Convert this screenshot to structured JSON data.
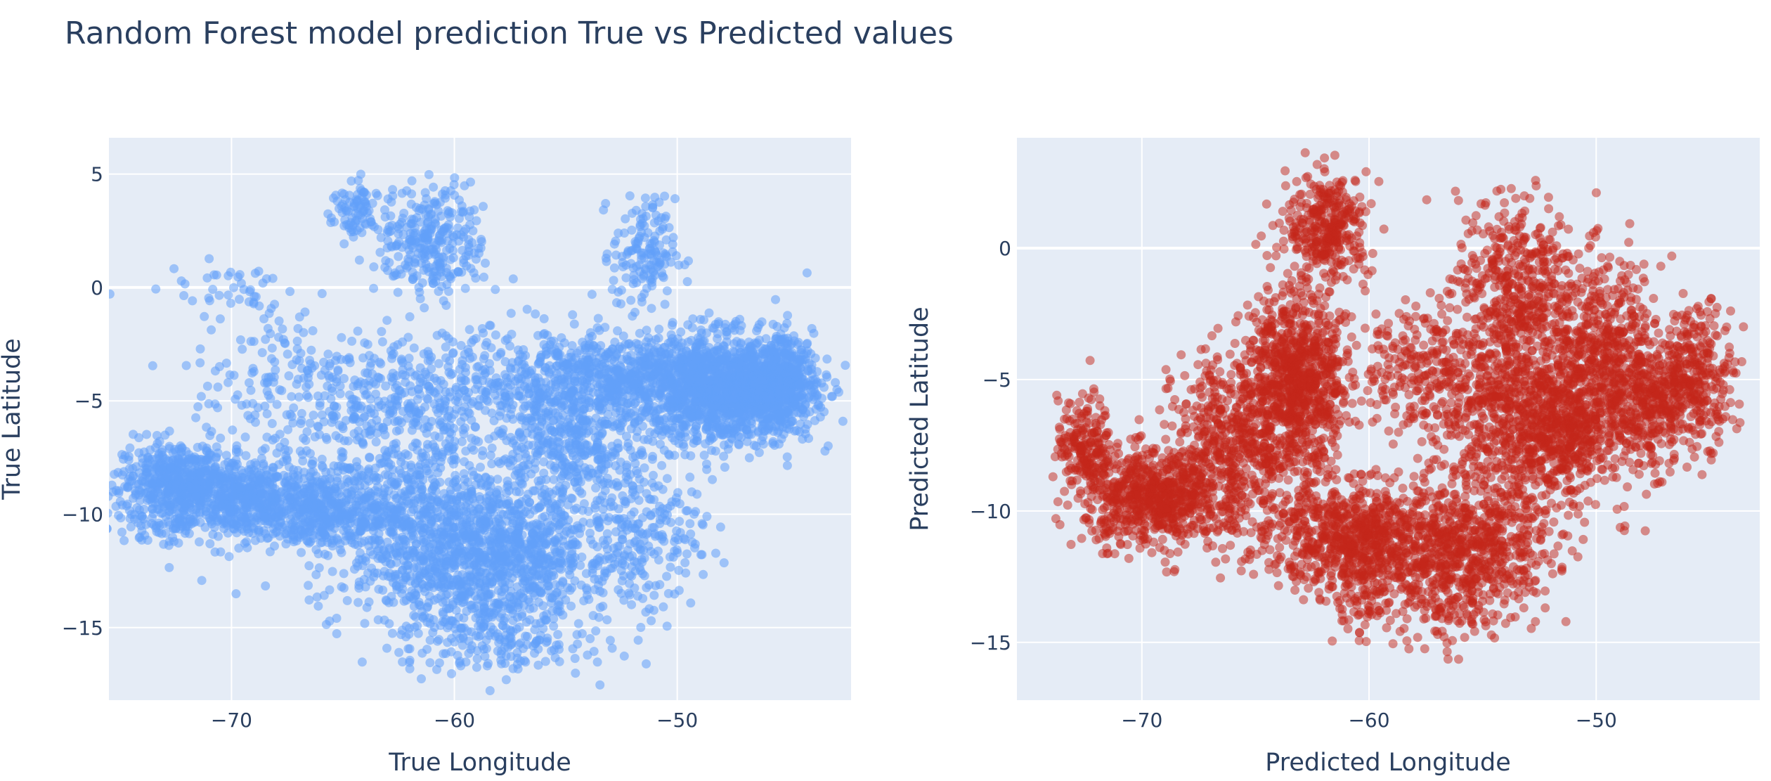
{
  "title": "Random Forest model prediction True vs Predicted values",
  "colors": {
    "plot_bg": "#e5ecf6",
    "grid": "#ffffff",
    "text": "#2a3f5f",
    "true_points": "#62a0fa",
    "pred_points": "#c3261a"
  },
  "chart_data": [
    {
      "type": "scatter",
      "title": "",
      "xlabel": "True Longitude",
      "ylabel": "True Latitude",
      "xlim": [
        -75.5,
        -42.2
      ],
      "ylim": [
        -18.2,
        6.6
      ],
      "xticks": [
        -70,
        -60,
        -50
      ],
      "xtick_labels": [
        "−70",
        "−60",
        "−50"
      ],
      "yticks": [
        5,
        0,
        -5,
        -10,
        -15
      ],
      "ytick_labels": [
        "5",
        "0",
        "−5",
        "−10",
        "−15"
      ],
      "grid": true,
      "legend": "none",
      "color": "#62a0fa",
      "opacity": 0.55,
      "point_groups": [
        {
          "cx": -69.5,
          "cy": -9.3,
          "sx": 3.2,
          "sy": 0.9,
          "n": 900
        },
        {
          "cx": -72.5,
          "cy": -8.5,
          "sx": 1.2,
          "sy": 0.9,
          "n": 350
        },
        {
          "cx": -66.0,
          "cy": -10.2,
          "sx": 2.5,
          "sy": 0.7,
          "n": 300
        },
        {
          "cx": -61.5,
          "cy": -10.5,
          "sx": 2.5,
          "sy": 2.0,
          "n": 700
        },
        {
          "cx": -59.0,
          "cy": -13.0,
          "sx": 2.2,
          "sy": 1.8,
          "n": 500
        },
        {
          "cx": -57.0,
          "cy": -11.5,
          "sx": 2.0,
          "sy": 1.5,
          "n": 450
        },
        {
          "cx": -55.0,
          "cy": -7.0,
          "sx": 1.3,
          "sy": 1.5,
          "n": 300
        },
        {
          "cx": -60.5,
          "cy": -5.0,
          "sx": 3.0,
          "sy": 1.5,
          "n": 450
        },
        {
          "cx": -53.0,
          "cy": -4.0,
          "sx": 3.0,
          "sy": 1.0,
          "n": 700
        },
        {
          "cx": -48.0,
          "cy": -4.5,
          "sx": 2.0,
          "sy": 1.2,
          "n": 1300
        },
        {
          "cx": -45.5,
          "cy": -4.2,
          "sx": 0.8,
          "sy": 1.0,
          "n": 400
        },
        {
          "cx": -61.0,
          "cy": 2.0,
          "sx": 1.2,
          "sy": 1.2,
          "n": 300
        },
        {
          "cx": -64.5,
          "cy": 3.3,
          "sx": 0.5,
          "sy": 0.7,
          "n": 80
        },
        {
          "cx": -51.5,
          "cy": 1.5,
          "sx": 0.7,
          "sy": 1.2,
          "n": 150
        },
        {
          "cx": -67.0,
          "cy": -4.5,
          "sx": 2.5,
          "sy": 2.0,
          "n": 200
        },
        {
          "cx": -52.0,
          "cy": -10.5,
          "sx": 1.5,
          "sy": 2.0,
          "n": 300
        },
        {
          "cx": -58.0,
          "cy": -16.0,
          "sx": 2.0,
          "sy": 0.6,
          "n": 80
        },
        {
          "cx": -70.0,
          "cy": 0.0,
          "sx": 1.5,
          "sy": 0.6,
          "n": 40
        }
      ]
    },
    {
      "type": "scatter",
      "title": "",
      "xlabel": "Predicted Longitude",
      "ylabel": "Predicted Latitude",
      "xlim": [
        -75.5,
        -42.8
      ],
      "ylim": [
        -17.2,
        4.2
      ],
      "xticks": [
        -70,
        -60,
        -50
      ],
      "xtick_labels": [
        "−70",
        "−60",
        "−50"
      ],
      "yticks": [
        0,
        -5,
        -10,
        -15
      ],
      "ytick_labels": [
        "0",
        "−5",
        "−10",
        "−15"
      ],
      "grid": true,
      "legend": "none",
      "color": "#c3261a",
      "opacity": 0.5,
      "point_groups": [
        {
          "cx": -72.5,
          "cy": -7.5,
          "sx": 0.6,
          "sy": 0.9,
          "n": 200
        },
        {
          "cx": -69.5,
          "cy": -9.5,
          "sx": 1.5,
          "sy": 0.9,
          "n": 700
        },
        {
          "cx": -66.0,
          "cy": -7.5,
          "sx": 1.3,
          "sy": 1.8,
          "n": 550
        },
        {
          "cx": -63.5,
          "cy": -5.0,
          "sx": 1.0,
          "sy": 1.8,
          "n": 600
        },
        {
          "cx": -61.8,
          "cy": 0.8,
          "sx": 0.9,
          "sy": 1.0,
          "n": 350
        },
        {
          "cx": -62.5,
          "cy": -5.5,
          "sx": 0.9,
          "sy": 1.5,
          "n": 300
        },
        {
          "cx": -60.5,
          "cy": -11.0,
          "sx": 2.0,
          "sy": 1.0,
          "n": 800
        },
        {
          "cx": -55.5,
          "cy": -11.5,
          "sx": 1.8,
          "sy": 1.2,
          "n": 600
        },
        {
          "cx": -53.5,
          "cy": -6.0,
          "sx": 2.0,
          "sy": 2.2,
          "n": 1000
        },
        {
          "cx": -53.5,
          "cy": -1.0,
          "sx": 1.3,
          "sy": 1.5,
          "n": 350
        },
        {
          "cx": -49.5,
          "cy": -4.5,
          "sx": 1.2,
          "sy": 2.0,
          "n": 600
        },
        {
          "cx": -51.5,
          "cy": -7.0,
          "sx": 1.0,
          "sy": 1.2,
          "n": 250
        },
        {
          "cx": -47.5,
          "cy": -6.0,
          "sx": 0.7,
          "sy": 1.2,
          "n": 250
        },
        {
          "cx": -45.5,
          "cy": -4.8,
          "sx": 0.8,
          "sy": 1.3,
          "n": 300
        },
        {
          "cx": -58.0,
          "cy": -4.5,
          "sx": 1.5,
          "sy": 1.2,
          "n": 200
        },
        {
          "cx": -57.0,
          "cy": -14.0,
          "sx": 1.2,
          "sy": 0.7,
          "n": 80
        },
        {
          "cx": -60.0,
          "cy": -13.5,
          "sx": 1.0,
          "sy": 0.6,
          "n": 80
        }
      ]
    }
  ]
}
